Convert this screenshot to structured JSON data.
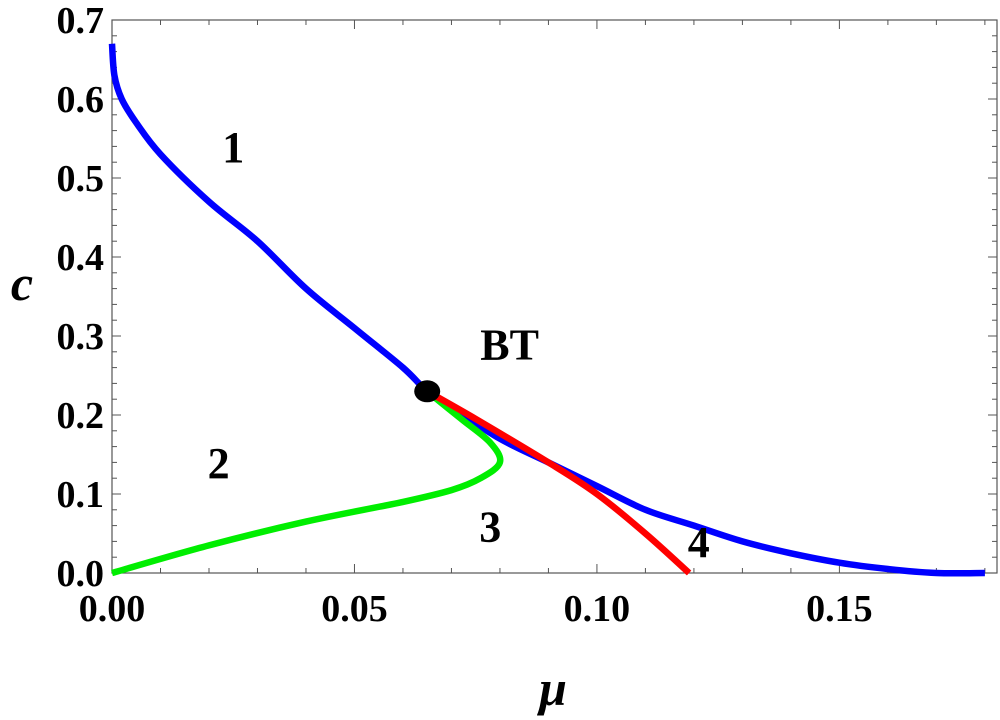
{
  "chart_data": {
    "type": "line",
    "title": "",
    "xlabel": "μ",
    "ylabel": "c",
    "xlim": [
      0.0,
      0.1825
    ],
    "ylim": [
      0.0,
      0.7
    ],
    "grid": false,
    "x_ticks": [
      0.0,
      0.05,
      0.1,
      0.15
    ],
    "x_tick_labels": [
      "0.00",
      "0.05",
      "0.10",
      "0.15"
    ],
    "y_ticks": [
      0.0,
      0.1,
      0.2,
      0.3,
      0.4,
      0.5,
      0.6,
      0.7
    ],
    "y_tick_labels": [
      "0.0",
      "0.1",
      "0.2",
      "0.3",
      "0.4",
      "0.5",
      "0.6",
      "0.7"
    ],
    "series": [
      {
        "color": "#0000ff",
        "points": [
          [
            0.0,
            0.67
          ],
          [
            0.0005,
            0.63
          ],
          [
            0.002,
            0.6
          ],
          [
            0.005,
            0.57
          ],
          [
            0.01,
            0.53
          ],
          [
            0.02,
            0.47
          ],
          [
            0.03,
            0.42
          ],
          [
            0.04,
            0.36
          ],
          [
            0.05,
            0.31
          ],
          [
            0.06,
            0.26
          ],
          [
            0.065,
            0.23
          ],
          [
            0.07,
            0.21
          ],
          [
            0.08,
            0.17
          ],
          [
            0.09,
            0.14
          ],
          [
            0.1,
            0.11
          ],
          [
            0.11,
            0.08
          ],
          [
            0.12,
            0.06
          ],
          [
            0.13,
            0.04
          ],
          [
            0.14,
            0.025
          ],
          [
            0.15,
            0.013
          ],
          [
            0.16,
            0.005
          ],
          [
            0.17,
            0.0
          ],
          [
            0.18,
            0.0
          ]
        ]
      },
      {
        "color": "#00ee00",
        "points": [
          [
            0.0,
            0.0
          ],
          [
            0.02,
            0.035
          ],
          [
            0.04,
            0.065
          ],
          [
            0.06,
            0.09
          ],
          [
            0.07,
            0.105
          ],
          [
            0.076,
            0.12
          ],
          [
            0.08,
            0.14
          ],
          [
            0.078,
            0.165
          ],
          [
            0.072,
            0.195
          ],
          [
            0.065,
            0.23
          ]
        ]
      },
      {
        "color": "#ff0000",
        "points": [
          [
            0.065,
            0.23
          ],
          [
            0.075,
            0.195
          ],
          [
            0.09,
            0.14
          ],
          [
            0.1,
            0.1
          ],
          [
            0.11,
            0.05
          ],
          [
            0.119,
            0.0
          ]
        ]
      }
    ],
    "marker": {
      "x": 0.065,
      "y": 0.23,
      "color": "#000000",
      "label": "BT"
    },
    "annotations": [
      {
        "text": "1",
        "x": 0.025,
        "y": 0.52
      },
      {
        "text": "2",
        "x": 0.022,
        "y": 0.12
      },
      {
        "text": "3",
        "x": 0.078,
        "y": 0.04
      },
      {
        "text": "4",
        "x": 0.121,
        "y": 0.02
      },
      {
        "text": "BT",
        "x": 0.082,
        "y": 0.27
      }
    ]
  }
}
